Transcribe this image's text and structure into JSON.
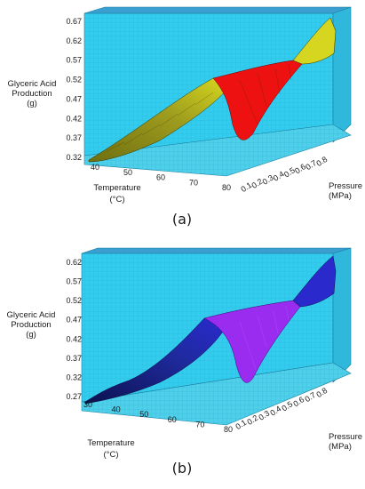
{
  "chart_data": [
    {
      "type": "surface",
      "panel_label": "(a)",
      "z_label_lines": [
        "Glyceric Acid",
        "Production",
        "(g)"
      ],
      "x_label": "Temperature",
      "x_unit": "(°C)",
      "y_label_lines": [
        "Pressure",
        "(MPa)"
      ],
      "z_ticks": [
        "0.32",
        "0.37",
        "0.42",
        "0.47",
        "0.52",
        "0.57",
        "0.62",
        "0.67"
      ],
      "x_ticks": [
        "40",
        "50",
        "60",
        "70",
        "80"
      ],
      "y_ticks": [
        "0.1",
        "0.2",
        "0.3",
        "0.4",
        "0.5",
        "0.6",
        "0.7",
        "0.8"
      ],
      "zlim": [
        0.32,
        0.67
      ],
      "xlim": [
        35,
        85
      ],
      "ylim": [
        0.05,
        0.85
      ],
      "surface": {
        "temperature": [
          40,
          50,
          60,
          70,
          80
        ],
        "pressure": [
          0.1,
          0.2,
          0.3,
          0.4,
          0.5,
          0.6,
          0.7,
          0.8
        ],
        "production_at_0_1_MPa": [
          0.33,
          0.4,
          0.46,
          0.36,
          0.62
        ],
        "production_at_0_8_MPa": [
          0.42,
          0.5,
          0.51,
          0.51,
          0.66
        ]
      },
      "colors": {
        "background": "#33ccee",
        "floor": "#4fd0ea",
        "surface_low": "#8a8a1c",
        "surface_high": "#d8d820",
        "surface_red": "#ee1111"
      }
    },
    {
      "type": "surface",
      "panel_label": "(b)",
      "z_label_lines": [
        "Glyceric Acid",
        "Production",
        "(g)"
      ],
      "x_label": "Temperature",
      "x_unit": "(°C)",
      "y_label_lines": [
        "Pressure",
        "(MPa)"
      ],
      "z_ticks": [
        "0.27",
        "0.32",
        "0.37",
        "0.42",
        "0.47",
        "0.52",
        "0.57",
        "0.62"
      ],
      "x_ticks": [
        "30",
        "40",
        "50",
        "60",
        "70",
        "80"
      ],
      "y_ticks": [
        "0.1",
        "0.2",
        "0.3",
        "0.4",
        "0.5",
        "0.6",
        "0.7",
        "0.8"
      ],
      "zlim": [
        0.27,
        0.64
      ],
      "xlim": [
        30,
        85
      ],
      "ylim": [
        0.05,
        0.85
      ],
      "surface": {
        "temperature": [
          35,
          45,
          55,
          65,
          75,
          82
        ],
        "pressure": [
          0.1,
          0.2,
          0.3,
          0.4,
          0.5,
          0.6,
          0.7,
          0.8
        ],
        "production_at_0_1_MPa": [
          0.28,
          0.36,
          0.42,
          0.44,
          0.33,
          0.61
        ],
        "production_at_0_8_MPa": [
          0.38,
          0.45,
          0.48,
          0.5,
          0.54,
          0.64
        ]
      },
      "colors": {
        "background": "#33ccee",
        "floor": "#4fd0ea",
        "surface_dark": "#151c78",
        "surface_mid": "#2a2abf",
        "surface_purple": "#9a2cf0"
      }
    }
  ]
}
